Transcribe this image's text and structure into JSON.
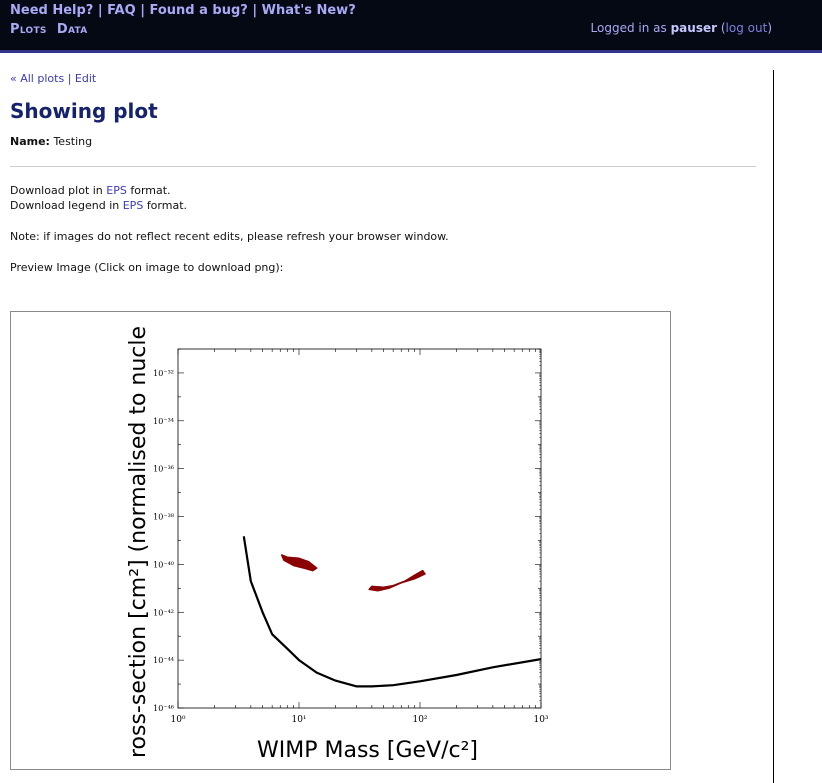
{
  "header": {
    "help_links": [
      "Need Help?",
      "FAQ",
      "Found a bug?",
      "What's New?"
    ],
    "nav": [
      "Plots",
      "Data"
    ],
    "login_prefix": "Logged in as",
    "username": "pauser",
    "logout_label": "log out"
  },
  "breadcrumbs": {
    "all_plots": "« All plots",
    "separator": "|",
    "edit": "Edit"
  },
  "page": {
    "title": "Showing plot",
    "name_label": "Name:",
    "name_value": "Testing",
    "download_plot_prefix": "Download plot in",
    "download_plot_link": "EPS",
    "download_plot_suffix": "format.",
    "download_legend_prefix": "Download legend in",
    "download_legend_link": "EPS",
    "download_legend_suffix": "format.",
    "note": "Note: if images do not reflect recent edits, please refresh your browser window.",
    "preview_label": "Preview Image (Click on image to download png):"
  },
  "colors": {
    "header_bg": "#050914",
    "header_text": "#a9a9f5",
    "link": "#3a3ab8",
    "title": "#15236e",
    "region_fill": "#8b0000",
    "curve": "#000000"
  },
  "chart_data": {
    "type": "line",
    "xscale": "log",
    "yscale": "log",
    "xlim": [
      1,
      1000
    ],
    "ylim": [
      1e-46,
      1e-31
    ],
    "xlabel": "WIMP Mass [GeV/c²]",
    "ylabel": "ross-section [cm²] (normalised to nucle",
    "x_ticks": [
      "10⁰",
      "10¹",
      "10²",
      "10³"
    ],
    "y_ticks": [
      "10⁻⁴⁶",
      "10⁻⁴⁴",
      "10⁻⁴²",
      "10⁻⁴⁰",
      "10⁻³⁸",
      "10⁻³⁶",
      "10⁻³⁴",
      "10⁻³²"
    ],
    "series": [
      {
        "kind": "limit-curve",
        "x": [
          3.5,
          4,
          5,
          6,
          8,
          10,
          14,
          20,
          30,
          40,
          60,
          100,
          200,
          400,
          1000
        ],
        "y": [
          1.5e-39,
          2e-41,
          1e-42,
          1.2e-43,
          3e-44,
          1e-44,
          3e-45,
          1.4e-45,
          8e-46,
          8e-46,
          9e-46,
          1.3e-45,
          2.4e-45,
          5e-45,
          1.1e-44
        ]
      },
      {
        "kind": "region",
        "x": [
          7.2,
          8,
          10,
          12,
          14,
          13,
          11,
          9,
          7.5
        ],
        "y": [
          2.5e-40,
          2e-40,
          1.8e-40,
          1.3e-40,
          7e-41,
          5.5e-41,
          7e-41,
          9e-41,
          1.5e-40
        ]
      },
      {
        "kind": "region",
        "x": [
          40,
          50,
          60,
          75,
          90,
          105,
          110,
          90,
          70,
          55,
          45,
          38
        ],
        "y": [
          1.2e-41,
          1.1e-41,
          1.3e-41,
          2e-41,
          3.5e-41,
          5.5e-41,
          4e-41,
          2.5e-41,
          1.7e-41,
          1e-41,
          8e-42,
          9e-42
        ]
      }
    ]
  }
}
